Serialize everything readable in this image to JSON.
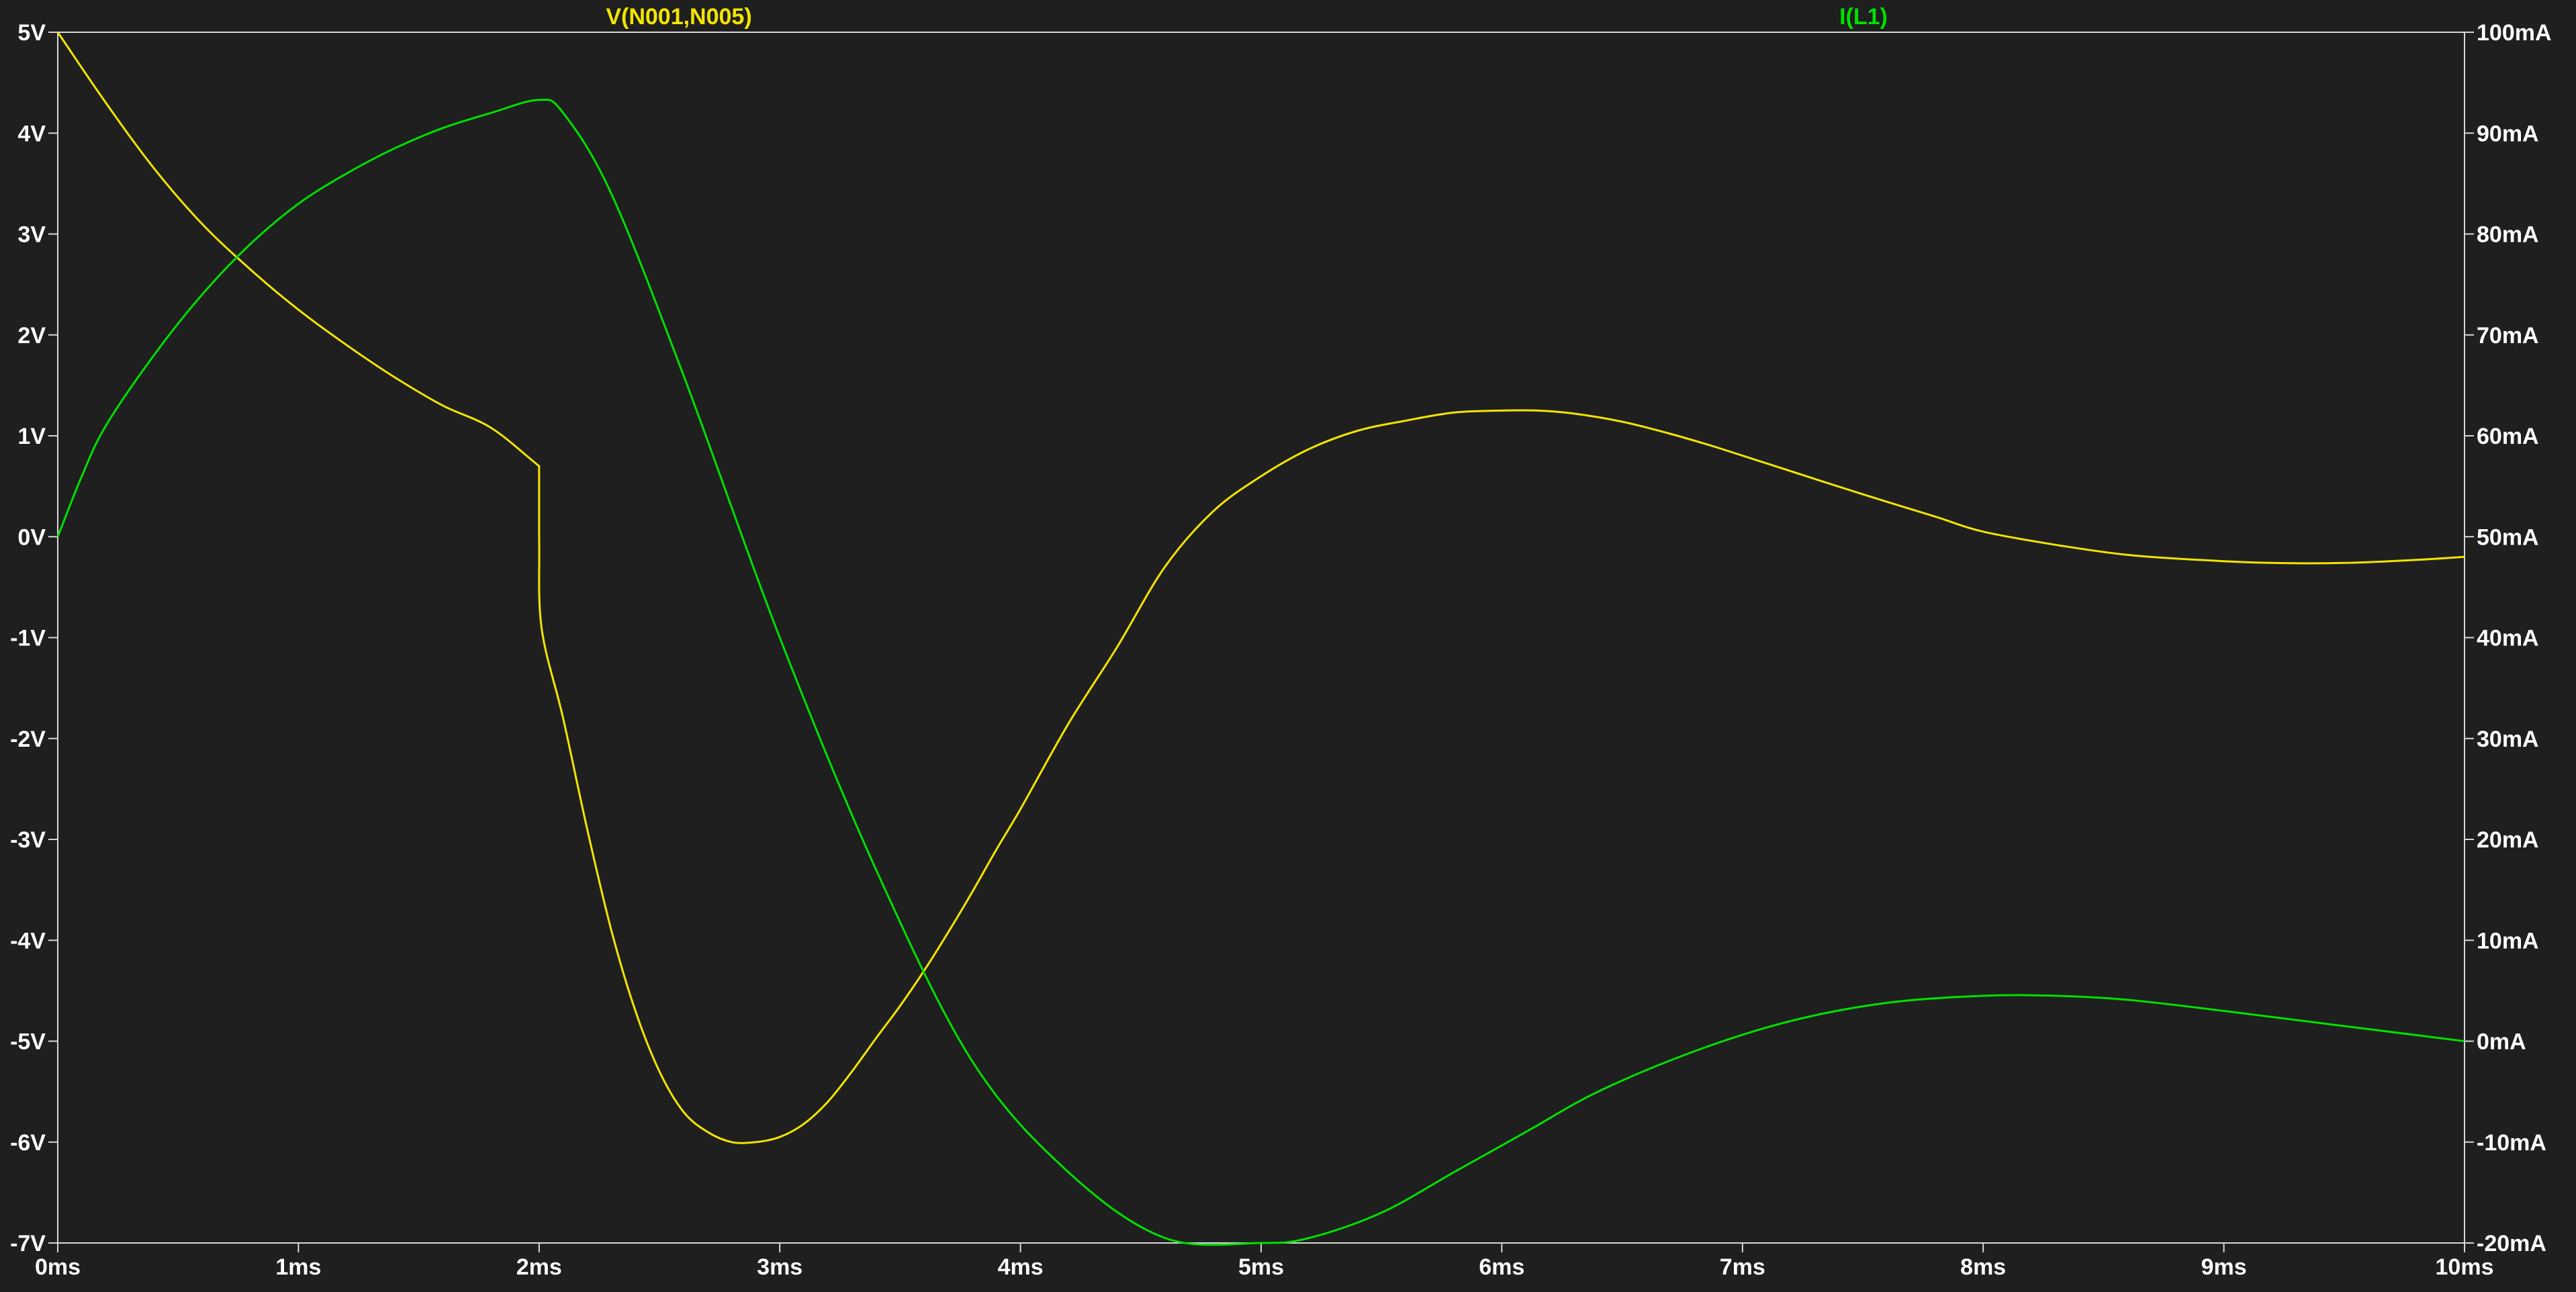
{
  "colors": {
    "background": "#1f1f1f",
    "axis": "#d8d8d8",
    "text": "#ffffff",
    "voltage": "#f2e500",
    "current": "#00e000"
  },
  "chart_data": {
    "type": "line",
    "x_unit": "ms",
    "xlim": [
      0,
      10
    ],
    "x_ticks": [
      "0ms",
      "1ms",
      "2ms",
      "3ms",
      "4ms",
      "5ms",
      "6ms",
      "7ms",
      "8ms",
      "9ms",
      "10ms"
    ],
    "y_left": {
      "ylim": [
        -7,
        5
      ],
      "ticks": [
        "5V",
        "4V",
        "3V",
        "2V",
        "1V",
        "0V",
        "-1V",
        "-2V",
        "-3V",
        "-4V",
        "-5V",
        "-6V",
        "-7V"
      ]
    },
    "y_right": {
      "ylim": [
        -20,
        100
      ],
      "ticks": [
        "100mA",
        "90mA",
        "80mA",
        "70mA",
        "60mA",
        "50mA",
        "40mA",
        "30mA",
        "20mA",
        "10mA",
        "0mA",
        "-10mA",
        "-20mA"
      ]
    },
    "series": [
      {
        "name": "V(N001,N005)",
        "axis": "left",
        "unit": "V",
        "x": [
          0,
          0.2,
          0.4,
          0.6,
          0.8,
          1.0,
          1.2,
          1.4,
          1.6,
          1.8,
          2.0,
          2.0,
          2.01,
          2.1,
          2.2,
          2.3,
          2.4,
          2.5,
          2.6,
          2.7,
          2.8,
          2.9,
          3.0,
          3.1,
          3.2,
          3.3,
          3.4,
          3.5,
          3.6,
          3.7,
          3.8,
          3.9,
          4.0,
          4.2,
          4.4,
          4.6,
          4.8,
          5.0,
          5.2,
          5.4,
          5.6,
          5.8,
          6.0,
          6.15,
          6.3,
          6.5,
          6.7,
          6.9,
          7.2,
          7.5,
          7.8,
          8.0,
          8.3,
          8.6,
          8.9,
          9.2,
          9.5,
          9.8,
          10.0
        ],
        "y": [
          5.0,
          4.3,
          3.65,
          3.1,
          2.65,
          2.25,
          1.9,
          1.58,
          1.3,
          1.08,
          0.7,
          0.0,
          -0.9,
          -1.8,
          -2.9,
          -3.9,
          -4.7,
          -5.3,
          -5.7,
          -5.9,
          -6.0,
          -6.0,
          -5.95,
          -5.82,
          -5.6,
          -5.3,
          -4.97,
          -4.65,
          -4.3,
          -3.92,
          -3.52,
          -3.1,
          -2.7,
          -1.85,
          -1.1,
          -0.3,
          0.25,
          0.6,
          0.87,
          1.05,
          1.15,
          1.23,
          1.25,
          1.25,
          1.22,
          1.14,
          1.02,
          0.88,
          0.65,
          0.42,
          0.2,
          0.05,
          -0.08,
          -0.18,
          -0.23,
          -0.26,
          -0.26,
          -0.23,
          -0.2
        ]
      },
      {
        "name": "I(L1)",
        "axis": "right",
        "unit": "mA",
        "x": [
          0,
          0.1,
          0.2,
          0.4,
          0.6,
          0.8,
          1.0,
          1.2,
          1.4,
          1.6,
          1.8,
          2.0,
          2.1,
          2.3,
          2.6,
          3.0,
          3.4,
          3.8,
          4.2,
          4.6,
          5.0,
          5.2,
          5.5,
          5.8,
          6.1,
          6.4,
          6.8,
          7.2,
          7.6,
          8.0,
          8.3,
          8.6,
          9.0,
          9.4,
          9.8,
          10.0
        ],
        "y": [
          50,
          56,
          61,
          68,
          74,
          79,
          83,
          86,
          88.5,
          90.5,
          92,
          93.3,
          92,
          84,
          66,
          40,
          17,
          -2,
          -13,
          -19.5,
          -20,
          -19.5,
          -17,
          -13,
          -9,
          -5,
          -1,
          2,
          3.8,
          4.5,
          4.5,
          4.1,
          3.0,
          1.8,
          0.6,
          0.0
        ]
      }
    ]
  }
}
